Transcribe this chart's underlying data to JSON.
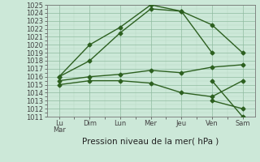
{
  "x_labels": [
    "Lu\nMar",
    "Dim",
    "Lun",
    "Mer",
    "Jeu",
    "Ven",
    "Sam"
  ],
  "x_positions": [
    0,
    1,
    2,
    3,
    4,
    5,
    6
  ],
  "series": [
    [
      1016.0,
      1020.0,
      1022.2,
      1025.0,
      1024.2,
      1019.0,
      null
    ],
    [
      1016.0,
      1018.0,
      1021.5,
      1024.5,
      1024.2,
      1022.5,
      1019.0
    ],
    [
      1015.5,
      1016.0,
      1016.3,
      1016.8,
      1016.5,
      1017.2,
      1017.5
    ],
    [
      1015.0,
      1015.5,
      1015.5,
      1015.2,
      1014.0,
      1013.5,
      1015.5
    ],
    [
      null,
      null,
      null,
      null,
      null,
      1015.5,
      1011.0
    ],
    [
      null,
      null,
      null,
      null,
      null,
      1013.0,
      1012.0
    ]
  ],
  "ylim": [
    1011,
    1025
  ],
  "yticks": [
    1011,
    1012,
    1013,
    1014,
    1015,
    1016,
    1017,
    1018,
    1019,
    1020,
    1021,
    1022,
    1023,
    1024,
    1025
  ],
  "line_color": "#2d6020",
  "bg_color": "#cce8d8",
  "grid_color_major": "#8fbb9f",
  "grid_color_minor": "#b8d8c4",
  "xlabel": "Pression niveau de la mer( hPa )",
  "xlabel_fontsize": 7.5,
  "tick_fontsize": 6.0,
  "lw": 1.0,
  "ms": 2.5
}
